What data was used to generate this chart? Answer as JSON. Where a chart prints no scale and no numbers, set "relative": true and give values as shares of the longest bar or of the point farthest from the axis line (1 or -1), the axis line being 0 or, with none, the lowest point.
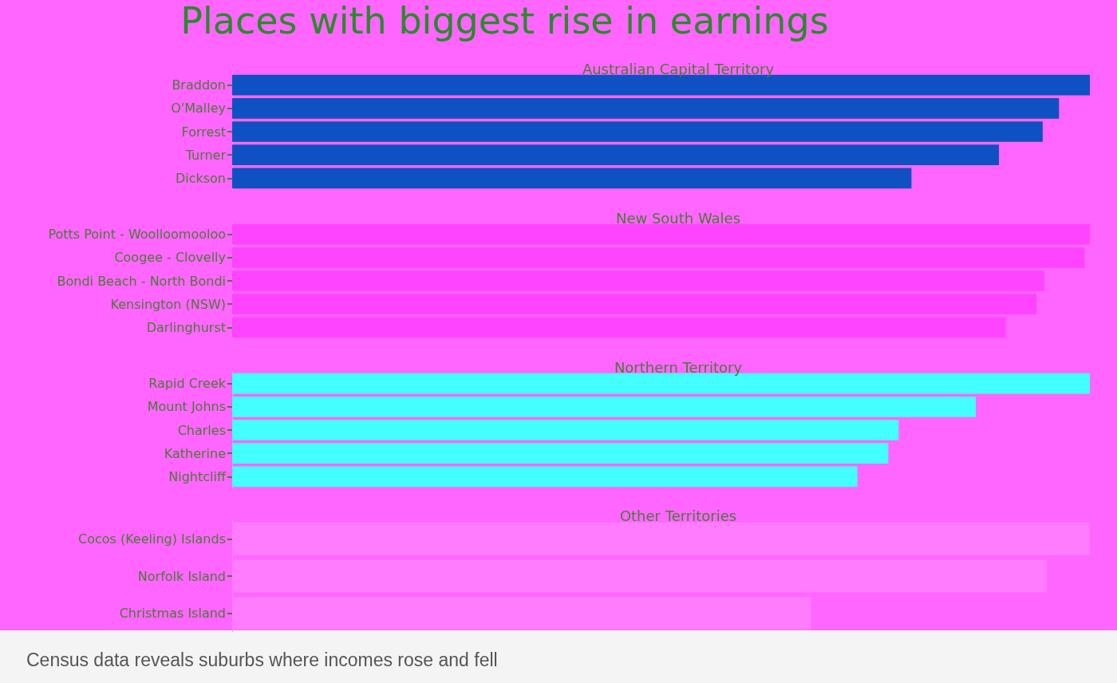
{
  "chart_data": [
    {
      "type": "bar",
      "orientation": "horizontal",
      "relative": true,
      "title": "Places with biggest rise in earnings",
      "subtitle": "Australian Capital Territory",
      "color": "#0f50c2",
      "categories": [
        "Braddon",
        "O'Malley",
        "Forrest",
        "Turner",
        "Dickson"
      ],
      "values": [
        1.0,
        0.964,
        0.945,
        0.894,
        0.792
      ],
      "annotations": [
        "Census data reveals suburbs where incomes rose and fell"
      ]
    },
    {
      "type": "bar",
      "orientation": "horizontal",
      "relative": true,
      "subtitle": "New South Wales",
      "color": "#ff44ff",
      "categories": [
        "Potts Point - Woolloomooloo",
        "Coogee - Clovelly",
        "Bondi Beach - North Bondi",
        "Kensington (NSW)",
        "Darlinghurst"
      ],
      "values": [
        1.0,
        0.994,
        0.947,
        0.938,
        0.902
      ]
    },
    {
      "type": "bar",
      "orientation": "horizontal",
      "relative": true,
      "subtitle": "Northern Territory",
      "color": "#44ffff",
      "categories": [
        "Rapid Creek",
        "Mount Johns",
        "Charles",
        "Katherine",
        "Nightcliff"
      ],
      "values": [
        1.0,
        0.867,
        0.777,
        0.765,
        0.729
      ]
    },
    {
      "type": "bar",
      "orientation": "horizontal",
      "relative": true,
      "subtitle": "Other Territories",
      "color": "#ff7cff",
      "categories": [
        "Cocos (Keeling) Islands",
        "Norfolk Island",
        "Christmas Island"
      ],
      "values": [
        1.0,
        0.95,
        0.675
      ]
    }
  ]
}
